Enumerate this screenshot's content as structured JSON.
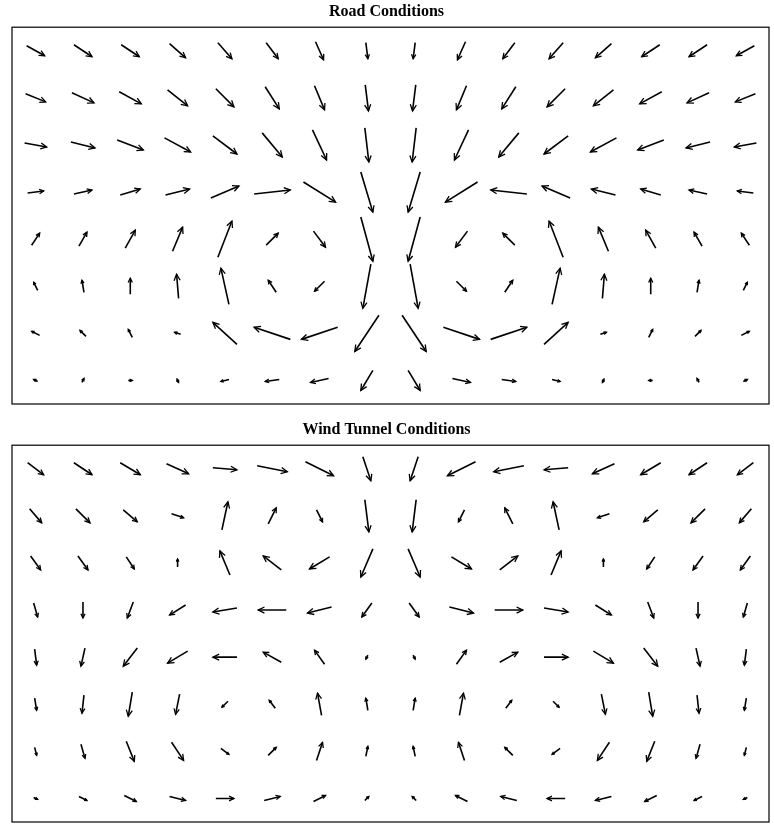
{
  "chart_data": [
    {
      "type": "quiver",
      "title": "Road Conditions",
      "color": "#000000",
      "marker": "arrow",
      "grid": false,
      "tick_labels": false,
      "xlim": [
        0,
        16
      ],
      "ylim": [
        0,
        8
      ],
      "x": [
        0.5,
        1.5,
        2.5,
        3.5,
        4.5,
        5.5,
        6.5,
        7.5,
        8.5,
        9.5,
        10.5,
        11.5,
        12.5,
        13.5,
        14.5,
        15.5
      ],
      "y": [
        7.5,
        6.5,
        5.5,
        4.5,
        3.5,
        2.5,
        1.5,
        0.5
      ],
      "u": [
        [
          0.45,
          0.45,
          0.45,
          0.4,
          0.35,
          0.3,
          0.2,
          0.05,
          -0.05,
          -0.2,
          -0.3,
          -0.35,
          -0.4,
          -0.45,
          -0.45,
          -0.45
        ],
        [
          0.5,
          0.55,
          0.55,
          0.5,
          0.45,
          0.35,
          0.25,
          0.08,
          -0.08,
          -0.25,
          -0.35,
          -0.45,
          -0.5,
          -0.55,
          -0.55,
          -0.5
        ],
        [
          0.55,
          0.6,
          0.65,
          0.65,
          0.6,
          0.5,
          0.35,
          0.1,
          -0.1,
          -0.35,
          -0.5,
          -0.6,
          -0.65,
          -0.65,
          -0.6,
          -0.55
        ],
        [
          0.4,
          0.45,
          0.5,
          0.6,
          0.7,
          0.9,
          0.8,
          0.3,
          -0.3,
          -0.8,
          -0.9,
          -0.7,
          -0.6,
          -0.5,
          -0.45,
          -0.4
        ],
        [
          0.2,
          0.2,
          0.25,
          0.25,
          0.35,
          0.3,
          0.3,
          0.3,
          -0.3,
          -0.3,
          -0.3,
          -0.35,
          -0.25,
          -0.25,
          -0.2,
          -0.2
        ],
        [
          -0.1,
          -0.05,
          0.0,
          -0.05,
          -0.2,
          -0.2,
          -0.25,
          -0.2,
          0.2,
          0.25,
          0.2,
          0.2,
          0.05,
          0.0,
          0.05,
          0.1
        ],
        [
          -0.2,
          -0.15,
          -0.1,
          -0.15,
          -0.6,
          -0.9,
          -0.9,
          -0.6,
          0.6,
          0.9,
          0.9,
          0.6,
          0.15,
          0.1,
          0.15,
          0.2
        ],
        [
          -0.1,
          0.05,
          0.1,
          0.05,
          -0.2,
          -0.35,
          -0.45,
          -0.3,
          0.3,
          0.45,
          0.35,
          0.2,
          -0.05,
          -0.1,
          -0.05,
          0.1
        ]
      ],
      "v": [
        [
          -0.25,
          -0.3,
          -0.3,
          -0.35,
          -0.4,
          -0.4,
          -0.45,
          -0.4,
          -0.4,
          -0.45,
          -0.4,
          -0.4,
          -0.35,
          -0.3,
          -0.3,
          -0.25
        ],
        [
          -0.2,
          -0.25,
          -0.3,
          -0.4,
          -0.45,
          -0.55,
          -0.6,
          -0.65,
          -0.65,
          -0.6,
          -0.55,
          -0.45,
          -0.4,
          -0.3,
          -0.25,
          -0.2
        ],
        [
          -0.1,
          -0.15,
          -0.25,
          -0.35,
          -0.45,
          -0.6,
          -0.75,
          -0.85,
          -0.85,
          -0.75,
          -0.6,
          -0.45,
          -0.35,
          -0.25,
          -0.15,
          -0.1
        ],
        [
          0.05,
          0.1,
          0.15,
          0.15,
          0.3,
          0.1,
          -0.5,
          -1.0,
          -1.0,
          -0.5,
          0.1,
          0.3,
          0.15,
          0.15,
          0.1,
          0.05
        ],
        [
          0.3,
          0.35,
          0.45,
          0.6,
          0.9,
          0.3,
          -0.4,
          -1.1,
          -1.1,
          -0.4,
          0.3,
          0.9,
          0.6,
          0.45,
          0.35,
          0.3
        ],
        [
          0.2,
          0.3,
          0.4,
          0.6,
          0.9,
          0.3,
          -0.25,
          -1.1,
          -1.1,
          -0.25,
          0.3,
          0.9,
          0.6,
          0.4,
          0.3,
          0.2
        ],
        [
          0.1,
          0.15,
          0.2,
          0.05,
          0.55,
          0.3,
          -0.3,
          -0.9,
          -0.9,
          -0.3,
          0.3,
          0.55,
          0.05,
          0.2,
          0.15,
          0.1
        ],
        [
          0.05,
          0.1,
          0.0,
          -0.1,
          -0.05,
          -0.05,
          -0.1,
          -0.5,
          -0.5,
          -0.1,
          -0.05,
          -0.05,
          -0.1,
          0.0,
          0.1,
          0.05
        ]
      ]
    },
    {
      "type": "quiver",
      "title": "Wind Tunnel Conditions",
      "color": "#000000",
      "marker": "arrow",
      "grid": false,
      "tick_labels": false,
      "xlim": [
        0,
        16
      ],
      "ylim": [
        0,
        8
      ],
      "x": [
        0.5,
        1.5,
        2.5,
        3.5,
        4.5,
        5.5,
        6.5,
        7.5,
        8.5,
        9.5,
        10.5,
        11.5,
        12.5,
        13.5,
        14.5,
        15.5
      ],
      "y": [
        7.5,
        6.5,
        5.5,
        4.5,
        3.5,
        2.5,
        1.5,
        0.5
      ],
      "u": [
        [
          0.4,
          0.45,
          0.5,
          0.55,
          0.6,
          0.75,
          0.7,
          0.2,
          -0.2,
          -0.7,
          -0.75,
          -0.6,
          -0.55,
          -0.5,
          -0.45,
          -0.4
        ],
        [
          0.3,
          0.35,
          0.35,
          0.3,
          0.15,
          0.2,
          0.15,
          0.1,
          -0.1,
          -0.15,
          -0.2,
          -0.15,
          -0.3,
          -0.35,
          -0.35,
          -0.3
        ],
        [
          0.25,
          0.25,
          0.2,
          0.0,
          -0.25,
          -0.45,
          -0.5,
          -0.3,
          0.3,
          0.5,
          0.45,
          0.25,
          0.0,
          -0.2,
          -0.25,
          -0.25
        ],
        [
          0.1,
          0.0,
          -0.15,
          -0.4,
          -0.6,
          -0.7,
          -0.6,
          -0.25,
          0.25,
          0.6,
          0.7,
          0.6,
          0.4,
          0.15,
          0.0,
          -0.1
        ],
        [
          0.05,
          -0.1,
          -0.35,
          -0.5,
          -0.6,
          -0.45,
          -0.25,
          -0.05,
          0.05,
          0.25,
          0.45,
          0.6,
          0.5,
          0.35,
          0.1,
          -0.05
        ],
        [
          0.05,
          -0.05,
          -0.1,
          -0.1,
          -0.15,
          -0.15,
          -0.1,
          -0.05,
          0.05,
          0.1,
          0.15,
          0.15,
          0.1,
          0.1,
          0.05,
          -0.05
        ],
        [
          0.05,
          0.1,
          0.2,
          0.3,
          0.2,
          0.2,
          0.15,
          0.05,
          -0.05,
          -0.15,
          -0.2,
          -0.2,
          -0.3,
          -0.2,
          -0.1,
          -0.05
        ],
        [
          0.1,
          0.2,
          0.3,
          0.4,
          0.45,
          0.4,
          0.3,
          0.1,
          -0.1,
          -0.3,
          -0.4,
          -0.45,
          -0.4,
          -0.3,
          -0.2,
          -0.1
        ]
      ],
      "v": [
        [
          -0.3,
          -0.3,
          -0.3,
          -0.25,
          -0.05,
          -0.15,
          -0.35,
          -0.6,
          -0.6,
          -0.35,
          -0.15,
          -0.05,
          -0.25,
          -0.3,
          -0.3,
          -0.3
        ],
        [
          -0.35,
          -0.35,
          -0.3,
          -0.1,
          0.7,
          0.4,
          -0.3,
          -0.8,
          -0.8,
          -0.3,
          0.4,
          0.7,
          -0.1,
          -0.3,
          -0.35,
          -0.35
        ],
        [
          -0.35,
          -0.35,
          -0.3,
          0.2,
          0.6,
          0.35,
          -0.3,
          -0.7,
          -0.7,
          -0.3,
          0.35,
          0.6,
          0.2,
          -0.3,
          -0.35,
          -0.35
        ],
        [
          -0.35,
          -0.4,
          -0.4,
          -0.25,
          -0.1,
          0.0,
          -0.15,
          -0.35,
          -0.35,
          -0.15,
          0.0,
          -0.1,
          -0.25,
          -0.4,
          -0.4,
          -0.35
        ],
        [
          -0.4,
          -0.45,
          -0.45,
          -0.3,
          0.0,
          0.25,
          0.35,
          -0.1,
          -0.1,
          0.35,
          0.25,
          0.0,
          -0.3,
          -0.45,
          -0.45,
          -0.4
        ],
        [
          -0.3,
          -0.45,
          -0.6,
          -0.5,
          -0.15,
          0.2,
          0.55,
          0.3,
          0.3,
          0.55,
          0.2,
          -0.15,
          -0.5,
          -0.6,
          -0.45,
          -0.3
        ],
        [
          -0.2,
          -0.35,
          -0.5,
          -0.45,
          -0.15,
          0.2,
          0.45,
          0.25,
          0.25,
          0.45,
          0.2,
          -0.15,
          -0.45,
          -0.5,
          -0.35,
          -0.2
        ],
        [
          -0.05,
          -0.1,
          -0.15,
          -0.1,
          0.0,
          0.1,
          0.15,
          0.1,
          0.1,
          0.15,
          0.1,
          0.0,
          -0.1,
          -0.15,
          -0.1,
          -0.05
        ]
      ]
    }
  ]
}
